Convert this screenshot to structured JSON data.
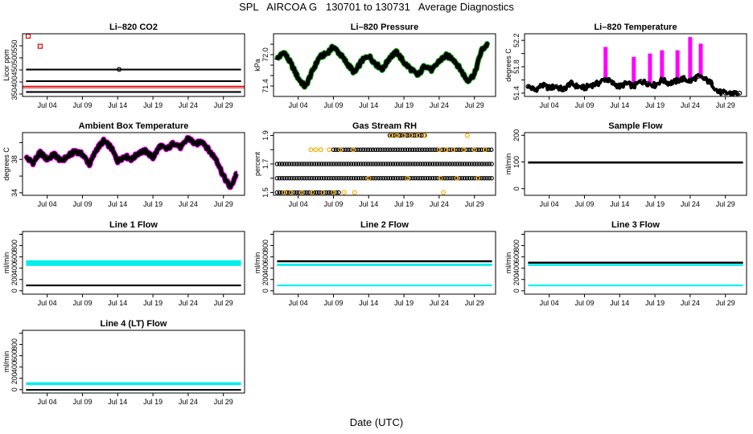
{
  "page": {
    "title": "SPL   AIRCOA G   130701 to 130731   Average Diagnostics",
    "xlabel": "Date (UTC)"
  },
  "chart_data": [
    {
      "type": "scatter",
      "title": "Li–820 CO2",
      "ylabel": "Licor ppm",
      "ylim": [
        340,
        600
      ],
      "yticks": [
        350,
        400,
        450,
        500,
        550
      ],
      "ylim_note": "axis extends to about 600",
      "x_ticks": [
        "Jul 04",
        "Jul 09",
        "Jul 14",
        "Jul 19",
        "Jul 24",
        "Jul 29"
      ],
      "x_tick_days": [
        4,
        9,
        14,
        19,
        24,
        29
      ],
      "xlim_days": [
        0.5,
        32
      ],
      "series": [
        {
          "name": "bands (black)",
          "color": "#000000",
          "kind": "band_set",
          "levels": [
            [
              355,
              362
            ],
            [
              400,
              407
            ],
            [
              448,
              455
            ]
          ],
          "x_range": [
            1,
            31.5
          ]
        },
        {
          "name": "red reference",
          "color": "#dd0000",
          "kind": "lines",
          "levels": [
            376,
            382
          ]
        },
        {
          "name": "outliers (red)",
          "color": "#dd0000",
          "kind": "points",
          "x": [
            1.3,
            3.0
          ],
          "y": [
            590,
            548
          ]
        },
        {
          "name": "outlier (black)",
          "color": "#000000",
          "kind": "points",
          "x": [
            14.2
          ],
          "y": [
            452
          ]
        }
      ]
    },
    {
      "type": "line",
      "title": "Li–820 Pressure",
      "ylabel": "kPa",
      "ylim": [
        71.2,
        72.4
      ],
      "yticks": [
        71.4,
        71.6,
        71.8,
        72.0,
        72.2
      ],
      "ytick_labels": [
        "71.4",
        "",
        "",
        "72.0",
        ""
      ],
      "x_ticks": [
        "Jul 04",
        "Jul 09",
        "Jul 14",
        "Jul 19",
        "Jul 24",
        "Jul 29"
      ],
      "x_tick_days": [
        4,
        9,
        14,
        19,
        24,
        29
      ],
      "xlim_days": [
        0.5,
        32
      ],
      "series": [
        {
          "name": "pressure",
          "color": "#000000",
          "halo": "#22aa22",
          "x": [
            1,
            2,
            3,
            4,
            5,
            6,
            7,
            8,
            9,
            10,
            11,
            12,
            13,
            14,
            15,
            16,
            17,
            18,
            19,
            20,
            21,
            22,
            23,
            24,
            25,
            26,
            27,
            28,
            29,
            30,
            31
          ],
          "y": [
            71.92,
            72.05,
            71.82,
            71.55,
            71.38,
            71.68,
            71.95,
            72.02,
            72.15,
            72.0,
            71.82,
            71.65,
            71.88,
            71.98,
            71.82,
            71.72,
            71.95,
            72.05,
            71.85,
            71.72,
            71.6,
            71.8,
            71.7,
            71.88,
            71.98,
            71.92,
            71.72,
            71.5,
            71.62,
            72.08,
            72.22
          ]
        }
      ]
    },
    {
      "type": "scatter",
      "title": "Li–820 Temperature",
      "ylabel": "degrees C",
      "ylim": [
        51.35,
        52.3
      ],
      "yticks": [
        51.4,
        51.6,
        51.8,
        52.0,
        52.2
      ],
      "ytick_labels": [
        "51.4",
        "",
        "51.8",
        "",
        "52.2"
      ],
      "x_ticks": [
        "Jul 04",
        "Jul 09",
        "Jul 14",
        "Jul 19",
        "Jul 24",
        "Jul 29"
      ],
      "x_tick_days": [
        4,
        9,
        14,
        19,
        24,
        29
      ],
      "xlim_days": [
        0.5,
        32
      ],
      "series": [
        {
          "name": "baseline",
          "color": "#000000",
          "x": [
            1,
            2,
            3,
            4,
            5,
            6,
            7,
            8,
            9,
            10,
            11,
            12,
            13,
            14,
            15,
            16,
            17,
            18,
            19,
            20,
            21,
            22,
            23,
            24,
            25,
            26,
            27,
            28,
            29,
            30,
            31
          ],
          "y": [
            51.5,
            51.45,
            51.52,
            51.48,
            51.5,
            51.45,
            51.55,
            51.5,
            51.48,
            51.52,
            51.55,
            51.62,
            51.55,
            51.5,
            51.55,
            51.5,
            51.58,
            51.55,
            51.52,
            51.6,
            51.55,
            51.58,
            51.62,
            51.58,
            51.65,
            51.62,
            51.55,
            51.42,
            51.4,
            51.4,
            51.4
          ]
        },
        {
          "name": "spikes (magenta)",
          "color": "#ff00ff",
          "kind": "spikes",
          "x": [
            12.0,
            16.0,
            18.3,
            20.0,
            22.2,
            24.0,
            25.5
          ],
          "y": [
            52.1,
            51.95,
            52.0,
            52.05,
            52.05,
            52.25,
            52.15
          ]
        }
      ]
    },
    {
      "type": "line",
      "title": "Ambient Box Temperature",
      "ylabel": "degrees C",
      "ylim": [
        33.7,
        41.2
      ],
      "yticks": [
        34,
        36,
        38,
        40
      ],
      "ytick_labels": [
        "34",
        "",
        "38",
        ""
      ],
      "x_ticks": [
        "Jul 04",
        "Jul 09",
        "Jul 14",
        "Jul 19",
        "Jul 24",
        "Jul 29"
      ],
      "x_tick_days": [
        4,
        9,
        14,
        19,
        24,
        29
      ],
      "xlim_days": [
        0.5,
        32
      ],
      "series": [
        {
          "name": "box temperature",
          "color": "#000000",
          "halo": "#ff00ff",
          "x": [
            1,
            2,
            3,
            4,
            5,
            6,
            7,
            8,
            9,
            10,
            11,
            12,
            13,
            14,
            15,
            16,
            17,
            18,
            19,
            20,
            21,
            22,
            23,
            24,
            25,
            26,
            27,
            28,
            29,
            30,
            31
          ],
          "y": [
            38.2,
            37.6,
            38.8,
            38.0,
            38.6,
            37.8,
            38.4,
            39.0,
            38.6,
            37.4,
            39.2,
            40.2,
            39.5,
            37.8,
            38.4,
            38.0,
            38.8,
            39.0,
            38.2,
            39.6,
            39.2,
            40.0,
            39.4,
            40.6,
            39.8,
            40.2,
            39.0,
            38.0,
            36.0,
            34.6,
            36.6
          ]
        }
      ]
    },
    {
      "type": "scatter",
      "title": "Gas Stream RH",
      "ylabel": "percent",
      "ylim": [
        1.48,
        1.92
      ],
      "yticks": [
        1.5,
        1.6,
        1.7,
        1.8,
        1.9
      ],
      "ytick_labels": [
        "1.5",
        "",
        "1.7",
        "",
        "1.9"
      ],
      "x_ticks": [
        "Jul 04",
        "Jul 09",
        "Jul 14",
        "Jul 19",
        "Jul 24",
        "Jul 29"
      ],
      "x_tick_days": [
        4,
        9,
        14,
        19,
        24,
        29
      ],
      "xlim_days": [
        0.5,
        32
      ],
      "series": [
        {
          "name": "quantized levels (black)",
          "color": "#000000",
          "kind": "levels",
          "levels": [
            {
              "y": 1.5,
              "x_range": [
                1,
                10
              ]
            },
            {
              "y": 1.6,
              "x_range": [
                1,
                31.5
              ]
            },
            {
              "y": 1.7,
              "x_range": [
                1,
                31.5
              ]
            },
            {
              "y": 1.8,
              "x_range": [
                9,
                31.5
              ]
            },
            {
              "y": 1.9,
              "x_range": [
                17,
                22
              ]
            }
          ]
        },
        {
          "name": "sparse values (orange)",
          "color": "#ffaa00",
          "kind": "points",
          "x": [
            2,
            3,
            4.5,
            6,
            7.5,
            9,
            10.5,
            12,
            5.8,
            6.5,
            7.2,
            8.4,
            10,
            11.8,
            17.2,
            18,
            19,
            20,
            21,
            22,
            24,
            25,
            26,
            27.5,
            29,
            30.5,
            14,
            19.5,
            24.2,
            26.5,
            29.5,
            24.6,
            28
          ],
          "y": [
            1.5,
            1.5,
            1.5,
            1.5,
            1.5,
            1.5,
            1.5,
            1.5,
            1.8,
            1.8,
            1.8,
            1.8,
            1.8,
            1.8,
            1.9,
            1.9,
            1.9,
            1.9,
            1.9,
            1.9,
            1.8,
            1.8,
            1.8,
            1.8,
            1.8,
            1.8,
            1.6,
            1.6,
            1.6,
            1.6,
            1.6,
            1.5,
            1.9
          ]
        }
      ]
    },
    {
      "type": "scatter",
      "title": "Sample Flow",
      "ylabel": "ml/min",
      "ylim": [
        -25,
        210
      ],
      "yticks": [
        0,
        100,
        200
      ],
      "x_ticks": [
        "Jul 04",
        "Jul 09",
        "Jul 14",
        "Jul 19",
        "Jul 24",
        "Jul 29"
      ],
      "x_tick_days": [
        4,
        9,
        14,
        19,
        24,
        29
      ],
      "xlim_days": [
        0.5,
        32
      ],
      "series": [
        {
          "name": "sample flow",
          "color": "#000000",
          "kind": "band",
          "y_range": [
            94,
            102
          ],
          "x_range": [
            1,
            31.5
          ]
        }
      ]
    },
    {
      "type": "scatter",
      "title": "Line 1 Flow",
      "ylabel": "ml/min",
      "ylim": [
        -60,
        1050
      ],
      "yticks": [
        0,
        200,
        400,
        600,
        800,
        1000
      ],
      "ytick_labels": [
        "0",
        "200",
        "400",
        "600",
        "800",
        ""
      ],
      "x_ticks": [
        "Jul 04",
        "Jul 09",
        "Jul 14",
        "Jul 19",
        "Jul 24",
        "Jul 29"
      ],
      "x_tick_days": [
        4,
        9,
        14,
        19,
        24,
        29
      ],
      "xlim_days": [
        0.5,
        32
      ],
      "series": [
        {
          "name": "other lines (cyan)",
          "color": "#00eeee",
          "kind": "band",
          "y_range": [
            440,
            540
          ],
          "x_range": [
            1,
            31.5
          ]
        },
        {
          "name": "this line (black)",
          "color": "#000000",
          "kind": "band",
          "y_range": [
            80,
            110
          ],
          "x_range": [
            1,
            31.5
          ]
        }
      ]
    },
    {
      "type": "scatter",
      "title": "Line 2 Flow",
      "ylabel": "ml/min",
      "ylim": [
        -60,
        1050
      ],
      "yticks": [
        0,
        200,
        400,
        600,
        800,
        1000
      ],
      "ytick_labels": [
        "0",
        "200",
        "400",
        "600",
        "800",
        ""
      ],
      "x_ticks": [
        "Jul 04",
        "Jul 09",
        "Jul 14",
        "Jul 19",
        "Jul 24",
        "Jul 29"
      ],
      "x_tick_days": [
        4,
        9,
        14,
        19,
        24,
        29
      ],
      "xlim_days": [
        0.5,
        32
      ],
      "series": [
        {
          "name": "other lines (cyan)",
          "color": "#00eeee",
          "kind": "band_set",
          "levels": [
            [
              440,
              480
            ],
            [
              80,
              110
            ]
          ],
          "x_range": [
            1,
            31.5
          ]
        },
        {
          "name": "this line (black)",
          "color": "#000000",
          "kind": "band",
          "y_range": [
            505,
            540
          ],
          "x_range": [
            1,
            31.5
          ]
        }
      ]
    },
    {
      "type": "scatter",
      "title": "Line 3 Flow",
      "ylabel": "ml/min",
      "ylim": [
        -60,
        1050
      ],
      "yticks": [
        0,
        200,
        400,
        600,
        800,
        1000
      ],
      "ytick_labels": [
        "0",
        "200",
        "400",
        "600",
        "800",
        ""
      ],
      "x_ticks": [
        "Jul 04",
        "Jul 09",
        "Jul 14",
        "Jul 19",
        "Jul 24",
        "Jul 29"
      ],
      "x_tick_days": [
        4,
        9,
        14,
        19,
        24,
        29
      ],
      "xlim_days": [
        0.5,
        32
      ],
      "series": [
        {
          "name": "other lines (cyan)",
          "color": "#00eeee",
          "kind": "band_set",
          "levels": [
            [
              440,
              475
            ],
            [
              80,
              110
            ]
          ],
          "x_range": [
            1,
            31.5
          ]
        },
        {
          "name": "this line (black)",
          "color": "#000000",
          "kind": "band",
          "y_range": [
            480,
            515
          ],
          "x_range": [
            1,
            31.5
          ]
        }
      ]
    },
    {
      "type": "scatter",
      "title": "Line 4 (LT) Flow",
      "ylabel": "ml/min",
      "ylim": [
        -60,
        1050
      ],
      "yticks": [
        0,
        200,
        400,
        600,
        800,
        1000
      ],
      "ytick_labels": [
        "0",
        "200",
        "400",
        "600",
        "800",
        ""
      ],
      "x_ticks": [
        "Jul 04",
        "Jul 09",
        "Jul 14",
        "Jul 19",
        "Jul 24",
        "Jul 29"
      ],
      "x_tick_days": [
        4,
        9,
        14,
        19,
        24,
        29
      ],
      "xlim_days": [
        0.5,
        32
      ],
      "series": [
        {
          "name": "other lines (cyan)",
          "color": "#00eeee",
          "kind": "band",
          "y_range": [
            80,
            130
          ],
          "x_range": [
            1,
            31.5
          ]
        },
        {
          "name": "this line (black)",
          "color": "#000000",
          "kind": "band",
          "y_range": [
            -5,
            10
          ],
          "x_range": [
            1,
            31.5
          ]
        }
      ]
    }
  ]
}
